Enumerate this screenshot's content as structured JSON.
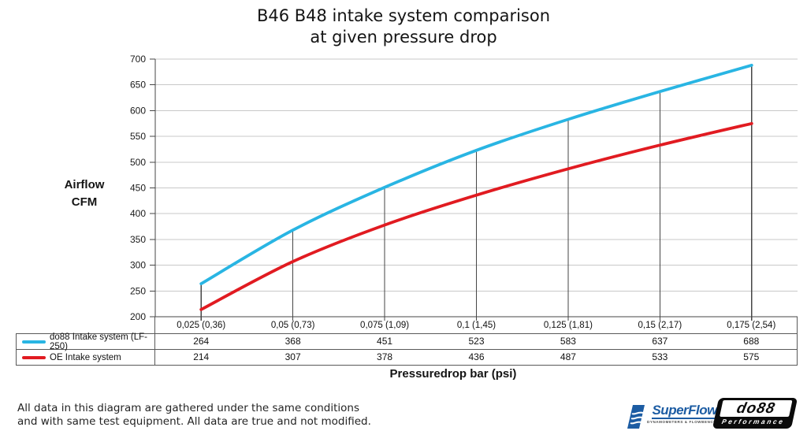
{
  "title": {
    "line1": "B46 B48 intake system comparison",
    "line2": "at given pressure drop"
  },
  "y_axis": {
    "label_line1": "Airflow",
    "label_line2": "CFM"
  },
  "x_axis": {
    "label": "Pressuredrop bar (psi)"
  },
  "footnote": {
    "line1": "All data in this diagram are gathered under the same conditions",
    "line2": "and with same test equipment. All data are true and not modified."
  },
  "logos": {
    "superflow": {
      "name": "SuperFlow",
      "tagline": "DYNAMOMETERS & FLOWBENCHES",
      "color": "#1c5ca3"
    },
    "do88": {
      "name": "do88",
      "subtitle": "Performance"
    }
  },
  "chart_data": {
    "type": "line",
    "title": "B46 B48 intake system comparison at given pressure drop",
    "xlabel": "Pressuredrop bar (psi)",
    "ylabel": "Airflow CFM",
    "categories": [
      "0,025 (0,36)",
      "0,05 (0,73)",
      "0,075 (1,09)",
      "0,1 (1,45)",
      "0,125 (1,81)",
      "0,15 (2,17)",
      "0,175 (2,54)"
    ],
    "series": [
      {
        "name": "do88 Intake system (LF-250)",
        "color": "#29b5e3",
        "values": [
          264,
          368,
          451,
          523,
          583,
          637,
          688
        ]
      },
      {
        "name": "OE Intake system",
        "color": "#e11b21",
        "values": [
          214,
          307,
          378,
          436,
          487,
          533,
          575
        ]
      }
    ],
    "ylim": [
      200,
      700
    ],
    "ytick_step": 50,
    "grid": "horizontal",
    "droplines_to_first_series": true,
    "legend_position": "table-left",
    "colors": {
      "grid": "#c8c8c8",
      "axis": "#464646",
      "tick_text": "#1a1a1a"
    }
  }
}
